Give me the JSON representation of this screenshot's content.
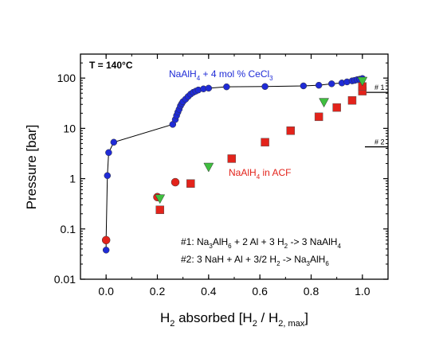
{
  "chart_data": {
    "type": "scatter",
    "xlabel": {
      "main": "H",
      "sub1": "2",
      "mid": " absorbed [H",
      "sub2": "2",
      "mid2": " / H",
      "sub3": "2, max",
      "end": "]"
    },
    "ylabel": "Pressure [bar]",
    "xlim": [
      -0.1,
      1.1
    ],
    "ylim": [
      0.01,
      300
    ],
    "y_scale": "log",
    "x_ticks": [
      "0.0",
      "0.2",
      "0.4",
      "0.6",
      "0.8",
      "1.0"
    ],
    "x_tick_values": [
      0.0,
      0.2,
      0.4,
      0.6,
      0.8,
      1.0
    ],
    "y_ticks": [
      "0.01",
      "0.1",
      "1",
      "10",
      "100"
    ],
    "y_tick_values": [
      0.01,
      0.1,
      1,
      10,
      100
    ],
    "temperature_label": "T = 140°C",
    "series": [
      {
        "name": "NaAlH4 + 4 mol % CeCl3",
        "label_parts": {
          "a": "NaAlH",
          "sub1": "4",
          "b": " + 4 mol % CeCl",
          "sub2": "3"
        },
        "color": "#1f2bd6",
        "marker": "circle",
        "connected": true,
        "x": [
          0.0,
          0.0,
          0.005,
          0.01,
          0.03,
          0.26,
          0.27,
          0.275,
          0.28,
          0.285,
          0.29,
          0.295,
          0.3,
          0.31,
          0.32,
          0.33,
          0.34,
          0.35,
          0.36,
          0.38,
          0.4,
          0.47,
          0.62,
          0.77,
          0.83,
          0.88,
          0.92,
          0.94,
          0.96,
          0.97,
          0.98,
          0.99,
          1.0,
          1.0
        ],
        "y": [
          0.038,
          0.06,
          1.15,
          3.3,
          5.3,
          12,
          15,
          18,
          21,
          24,
          28,
          31,
          34,
          38,
          43,
          48,
          52,
          55,
          58,
          61,
          63,
          67,
          68,
          70,
          72,
          77,
          80,
          84,
          88,
          90,
          93,
          95,
          97,
          98
        ]
      },
      {
        "name": "NaAlH4 in ACF",
        "label_parts": {
          "a": "NaAlH",
          "sub1": "4",
          "b": " in ACF"
        },
        "color": "#e3231b",
        "marker": "square",
        "connected": false,
        "x": [
          0.21,
          0.33,
          0.49,
          0.62,
          0.72,
          0.83,
          0.9,
          0.96,
          1.0,
          1.0
        ],
        "y": [
          0.24,
          0.8,
          2.5,
          5.3,
          9.0,
          17,
          26,
          36,
          55,
          68
        ]
      },
      {
        "name": "circles",
        "color": "#e3231b",
        "marker": "circle",
        "connected": false,
        "x": [
          0.0,
          0.2,
          0.27
        ],
        "y": [
          0.06,
          0.43,
          0.85
        ]
      },
      {
        "name": "triangles",
        "color": "#3fbf3f",
        "marker": "triangle-down",
        "connected": false,
        "x": [
          0.21,
          0.4,
          0.85,
          1.0
        ],
        "y": [
          0.4,
          1.7,
          33,
          87
        ]
      }
    ],
    "reference_lines": [
      {
        "label": "# 1",
        "y": 52
      },
      {
        "label": "# 2",
        "y": 4.3
      }
    ],
    "reactions": [
      {
        "pre": "#1: Na",
        "s1": "3",
        "a": "AlH",
        "s2": "6",
        "b": " + 2 Al + 3 H",
        "s3": "2",
        "c": " -> 3 NaAlH",
        "s4": "4"
      },
      {
        "pre": "#2: 3 NaH  + Al + 3/2 H",
        "s1": "2",
        "a": " -> Na",
        "s2": "3",
        "b": "AlH",
        "s3": "6"
      }
    ]
  }
}
